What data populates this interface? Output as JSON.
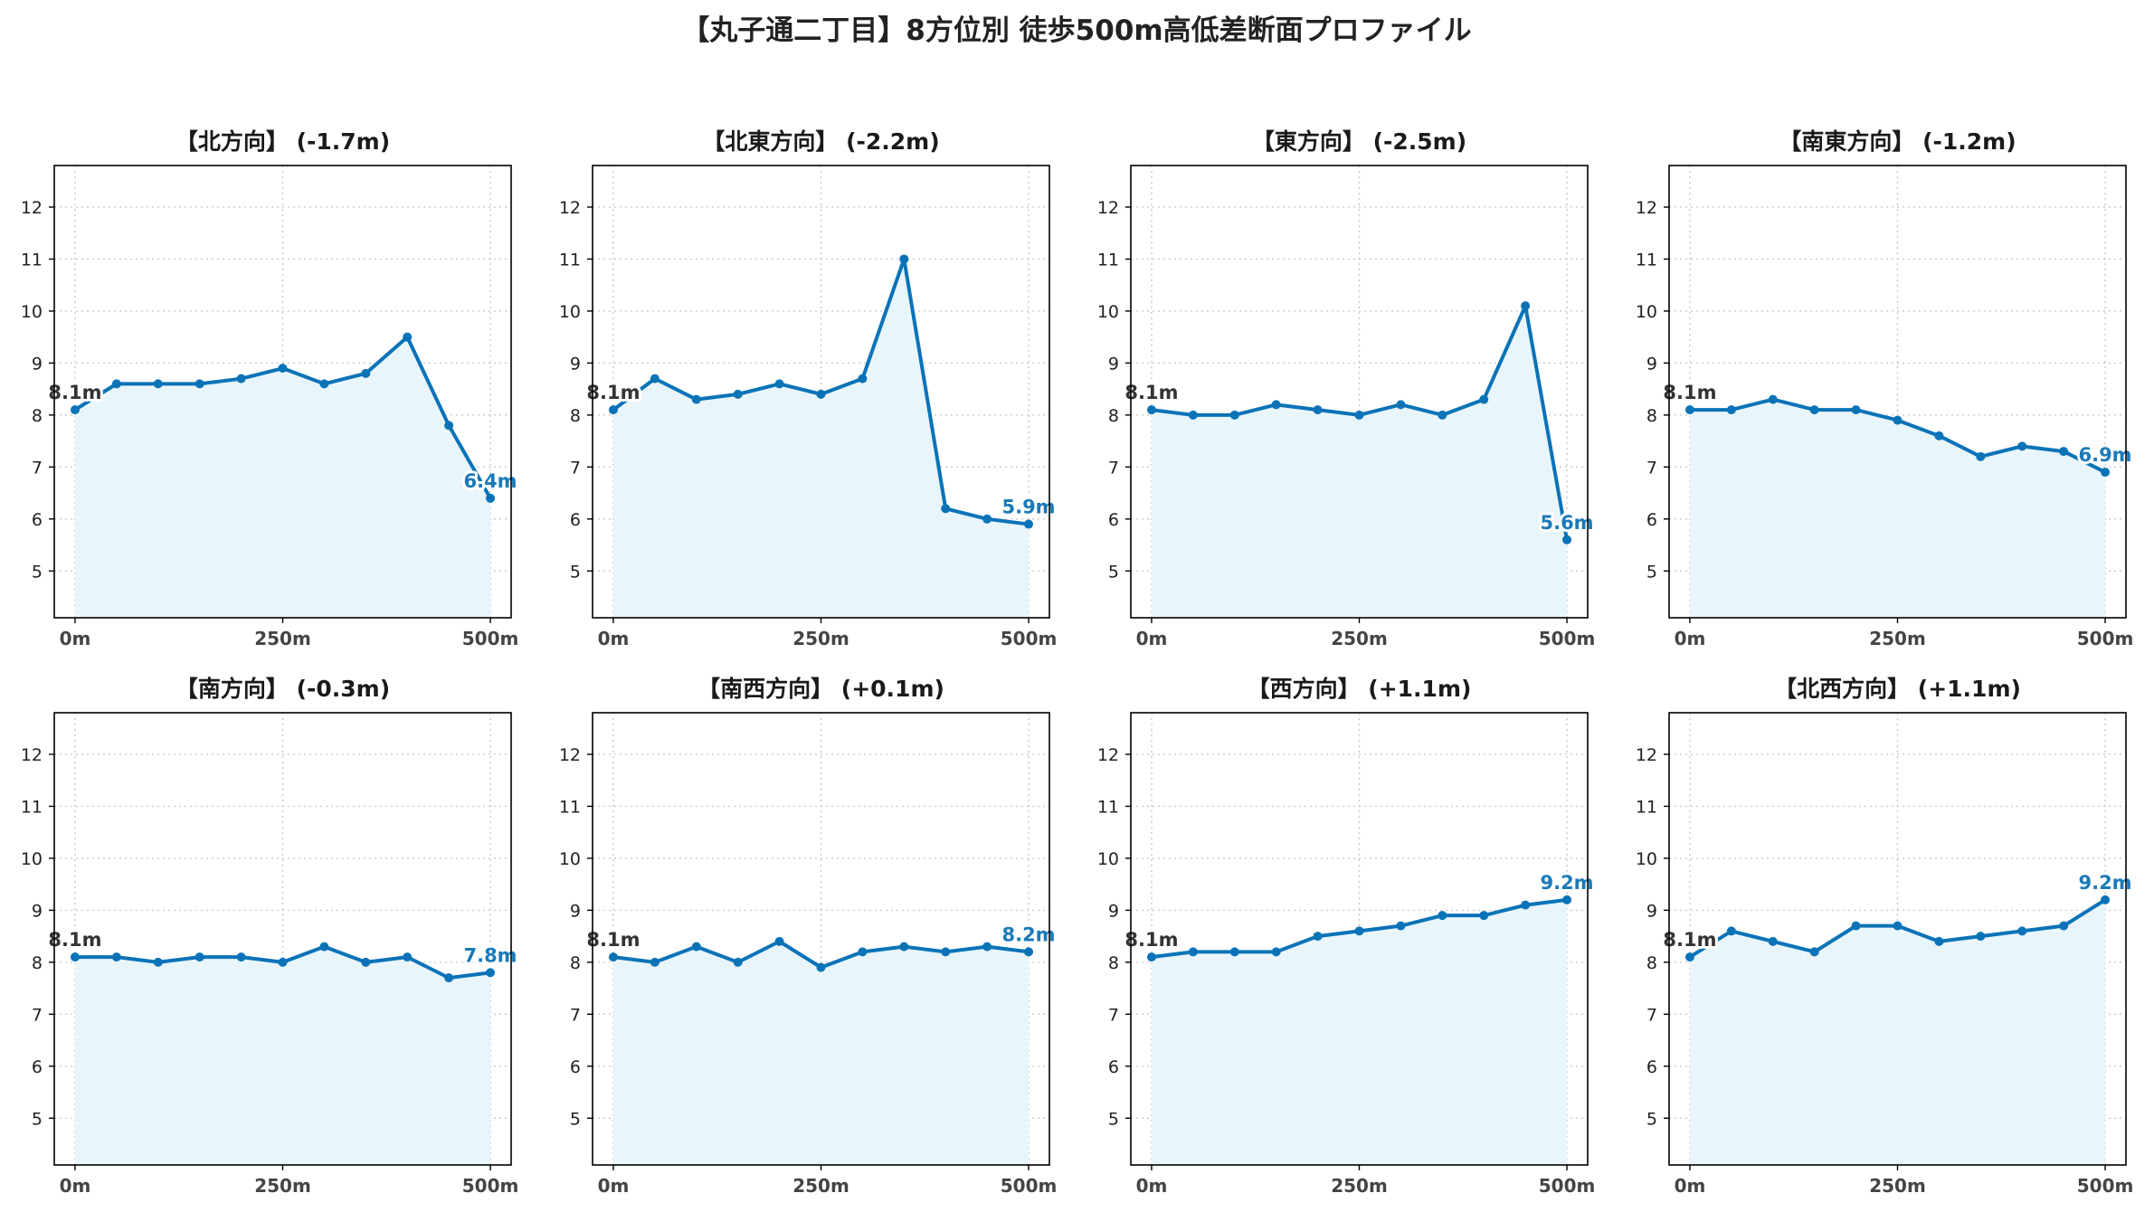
{
  "title": "【丸子通二丁目】8方位別 徒歩500m高低差断面プロファイル",
  "colors": {
    "line": "#0a73b7",
    "fill": "#e8f5fb",
    "start_label": "#333333",
    "end_label": "#1a7ab8"
  },
  "chart_data": [
    {
      "type": "area",
      "title": "【北方向】 (-1.7m)",
      "x": [
        0,
        50,
        100,
        150,
        200,
        250,
        300,
        350,
        400,
        450,
        500
      ],
      "y": [
        8.1,
        8.6,
        8.6,
        8.6,
        8.7,
        8.9,
        8.6,
        8.8,
        9.5,
        7.8,
        6.4
      ],
      "start_label": "8.1m",
      "end_label": "6.4m",
      "xticks": [
        "0m",
        "250m",
        "500m"
      ],
      "yticks": [
        "5",
        "6",
        "7",
        "8",
        "9",
        "10",
        "11",
        "12"
      ],
      "xlim": [
        -25,
        525
      ],
      "ylim": [
        4.1,
        12.8
      ],
      "grid": true
    },
    {
      "type": "area",
      "title": "【北東方向】 (-2.2m)",
      "x": [
        0,
        50,
        100,
        150,
        200,
        250,
        300,
        350,
        400,
        450,
        500
      ],
      "y": [
        8.1,
        8.7,
        8.3,
        8.4,
        8.6,
        8.4,
        8.7,
        11.0,
        6.2,
        6.0,
        5.9
      ],
      "start_label": "8.1m",
      "end_label": "5.9m",
      "xticks": [
        "0m",
        "250m",
        "500m"
      ],
      "yticks": [
        "5",
        "6",
        "7",
        "8",
        "9",
        "10",
        "11",
        "12"
      ],
      "xlim": [
        -25,
        525
      ],
      "ylim": [
        4.1,
        12.8
      ],
      "grid": true
    },
    {
      "type": "area",
      "title": "【東方向】 (-2.5m)",
      "x": [
        0,
        50,
        100,
        150,
        200,
        250,
        300,
        350,
        400,
        450,
        500
      ],
      "y": [
        8.1,
        8.0,
        8.0,
        8.2,
        8.1,
        8.0,
        8.2,
        8.0,
        8.3,
        10.1,
        5.6
      ],
      "start_label": "8.1m",
      "end_label": "5.6m",
      "xticks": [
        "0m",
        "250m",
        "500m"
      ],
      "yticks": [
        "5",
        "6",
        "7",
        "8",
        "9",
        "10",
        "11",
        "12"
      ],
      "xlim": [
        -25,
        525
      ],
      "ylim": [
        4.1,
        12.8
      ],
      "grid": true
    },
    {
      "type": "area",
      "title": "【南東方向】 (-1.2m)",
      "x": [
        0,
        50,
        100,
        150,
        200,
        250,
        300,
        350,
        400,
        450,
        500
      ],
      "y": [
        8.1,
        8.1,
        8.3,
        8.1,
        8.1,
        7.9,
        7.6,
        7.2,
        7.4,
        7.3,
        6.9
      ],
      "start_label": "8.1m",
      "end_label": "6.9m",
      "xticks": [
        "0m",
        "250m",
        "500m"
      ],
      "yticks": [
        "5",
        "6",
        "7",
        "8",
        "9",
        "10",
        "11",
        "12"
      ],
      "xlim": [
        -25,
        525
      ],
      "ylim": [
        4.1,
        12.8
      ],
      "grid": true
    },
    {
      "type": "area",
      "title": "【南方向】 (-0.3m)",
      "x": [
        0,
        50,
        100,
        150,
        200,
        250,
        300,
        350,
        400,
        450,
        500
      ],
      "y": [
        8.1,
        8.1,
        8.0,
        8.1,
        8.1,
        8.0,
        8.3,
        8.0,
        8.1,
        7.7,
        7.8
      ],
      "start_label": "8.1m",
      "end_label": "7.8m",
      "xticks": [
        "0m",
        "250m",
        "500m"
      ],
      "yticks": [
        "5",
        "6",
        "7",
        "8",
        "9",
        "10",
        "11",
        "12"
      ],
      "xlim": [
        -25,
        525
      ],
      "ylim": [
        4.1,
        12.8
      ],
      "grid": true
    },
    {
      "type": "area",
      "title": "【南西方向】 (+0.1m)",
      "x": [
        0,
        50,
        100,
        150,
        200,
        250,
        300,
        350,
        400,
        450,
        500
      ],
      "y": [
        8.1,
        8.0,
        8.3,
        8.0,
        8.4,
        7.9,
        8.2,
        8.3,
        8.2,
        8.3,
        8.2
      ],
      "start_label": "8.1m",
      "end_label": "8.2m",
      "xticks": [
        "0m",
        "250m",
        "500m"
      ],
      "yticks": [
        "5",
        "6",
        "7",
        "8",
        "9",
        "10",
        "11",
        "12"
      ],
      "xlim": [
        -25,
        525
      ],
      "ylim": [
        4.1,
        12.8
      ],
      "grid": true
    },
    {
      "type": "area",
      "title": "【西方向】 (+1.1m)",
      "x": [
        0,
        50,
        100,
        150,
        200,
        250,
        300,
        350,
        400,
        450,
        500
      ],
      "y": [
        8.1,
        8.2,
        8.2,
        8.2,
        8.5,
        8.6,
        8.7,
        8.9,
        8.9,
        9.1,
        9.2
      ],
      "start_label": "8.1m",
      "end_label": "9.2m",
      "xticks": [
        "0m",
        "250m",
        "500m"
      ],
      "yticks": [
        "5",
        "6",
        "7",
        "8",
        "9",
        "10",
        "11",
        "12"
      ],
      "xlim": [
        -25,
        525
      ],
      "ylim": [
        4.1,
        12.8
      ],
      "grid": true
    },
    {
      "type": "area",
      "title": "【北西方向】 (+1.1m)",
      "x": [
        0,
        50,
        100,
        150,
        200,
        250,
        300,
        350,
        400,
        450,
        500
      ],
      "y": [
        8.1,
        8.6,
        8.4,
        8.2,
        8.7,
        8.7,
        8.4,
        8.5,
        8.6,
        8.7,
        9.2
      ],
      "start_label": "8.1m",
      "end_label": "9.2m",
      "xticks": [
        "0m",
        "250m",
        "500m"
      ],
      "yticks": [
        "5",
        "6",
        "7",
        "8",
        "9",
        "10",
        "11",
        "12"
      ],
      "xlim": [
        -25,
        525
      ],
      "ylim": [
        4.1,
        12.8
      ],
      "grid": true
    }
  ]
}
